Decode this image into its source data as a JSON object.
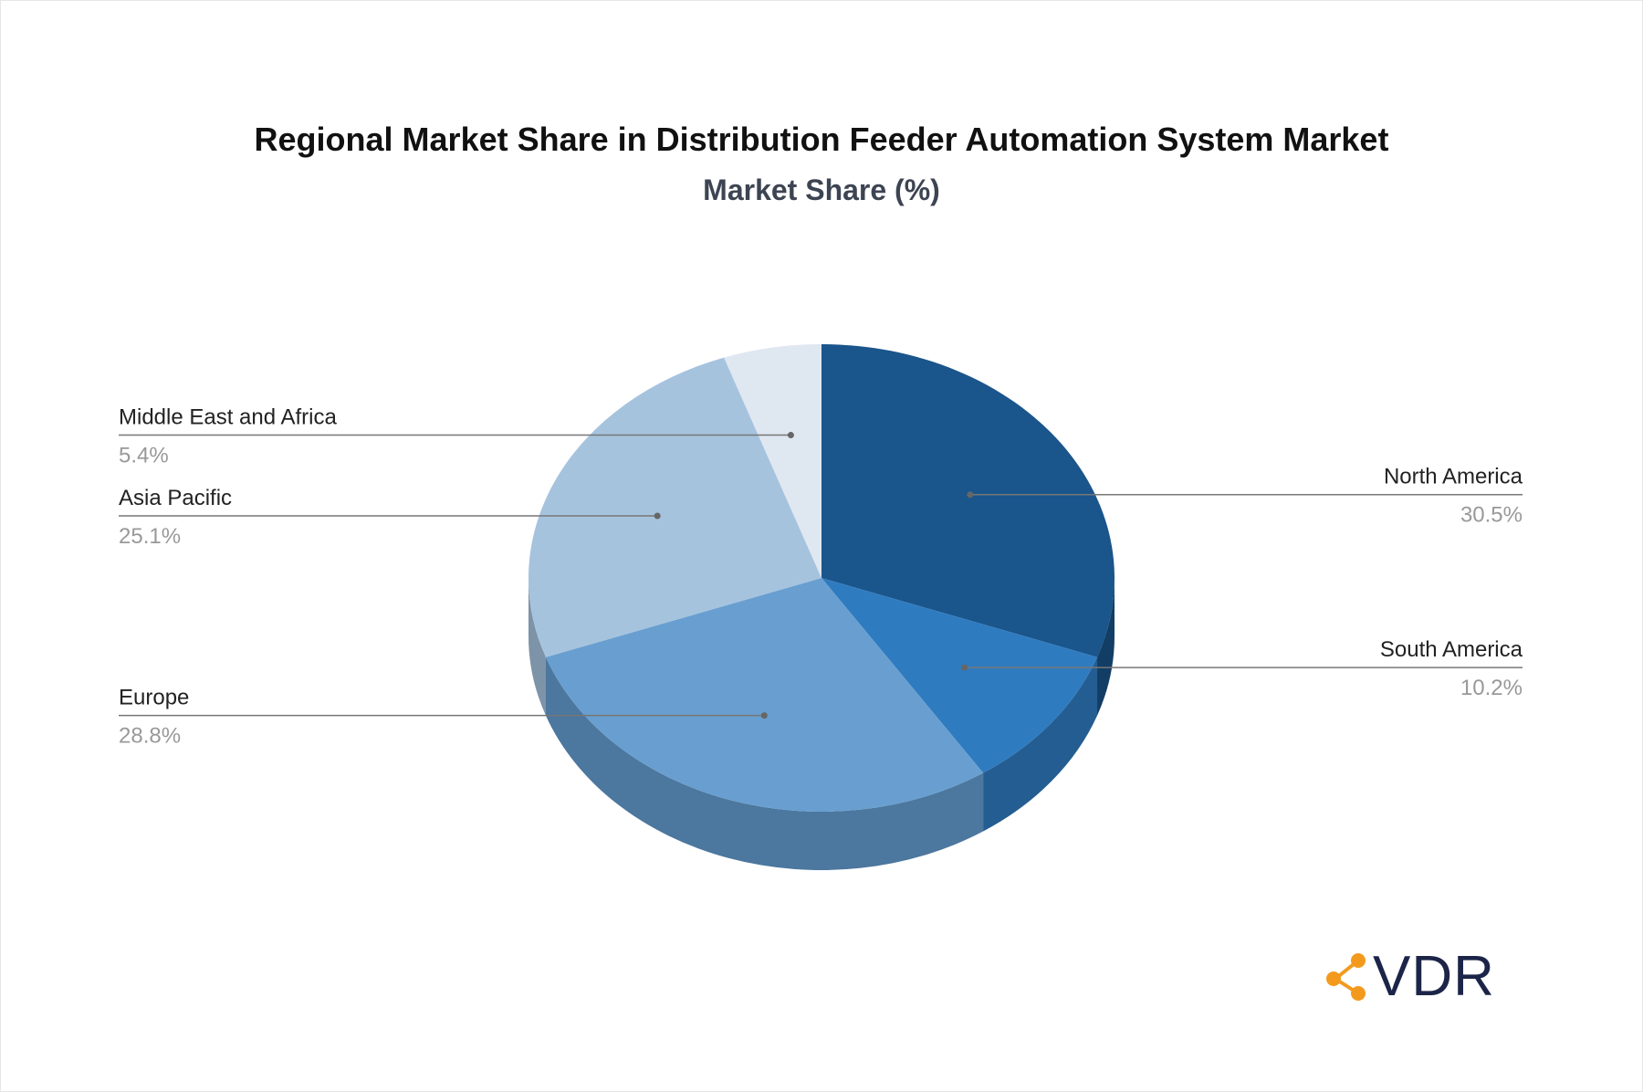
{
  "chart_data": {
    "type": "pie",
    "title": "Regional Market Share in Distribution Feeder Automation System Market",
    "subtitle": "Market Share (%)",
    "slices": [
      {
        "label": "North America",
        "value": 30.5,
        "value_label": "30.5%",
        "color": "#1a558b",
        "side_color": "#123d65"
      },
      {
        "label": "South America",
        "value": 10.2,
        "value_label": "10.2%",
        "color": "#2f7bc0",
        "side_color": "#245d91"
      },
      {
        "label": "Europe",
        "value": 28.8,
        "value_label": "28.8%",
        "color": "#689fd0",
        "side_color": "#4c779e"
      },
      {
        "label": "Asia Pacific",
        "value": 25.1,
        "value_label": "25.1%",
        "color": "#a6c3de",
        "side_color": "#7d93a8"
      },
      {
        "label": "Middle East and Africa",
        "value": 5.4,
        "value_label": "5.4%",
        "color": "#dfe7f1",
        "side_color": "#a9afb6"
      }
    ]
  },
  "logo": {
    "text": "VDR",
    "accent_color": "#f39a1e",
    "text_color": "#1c2548"
  }
}
